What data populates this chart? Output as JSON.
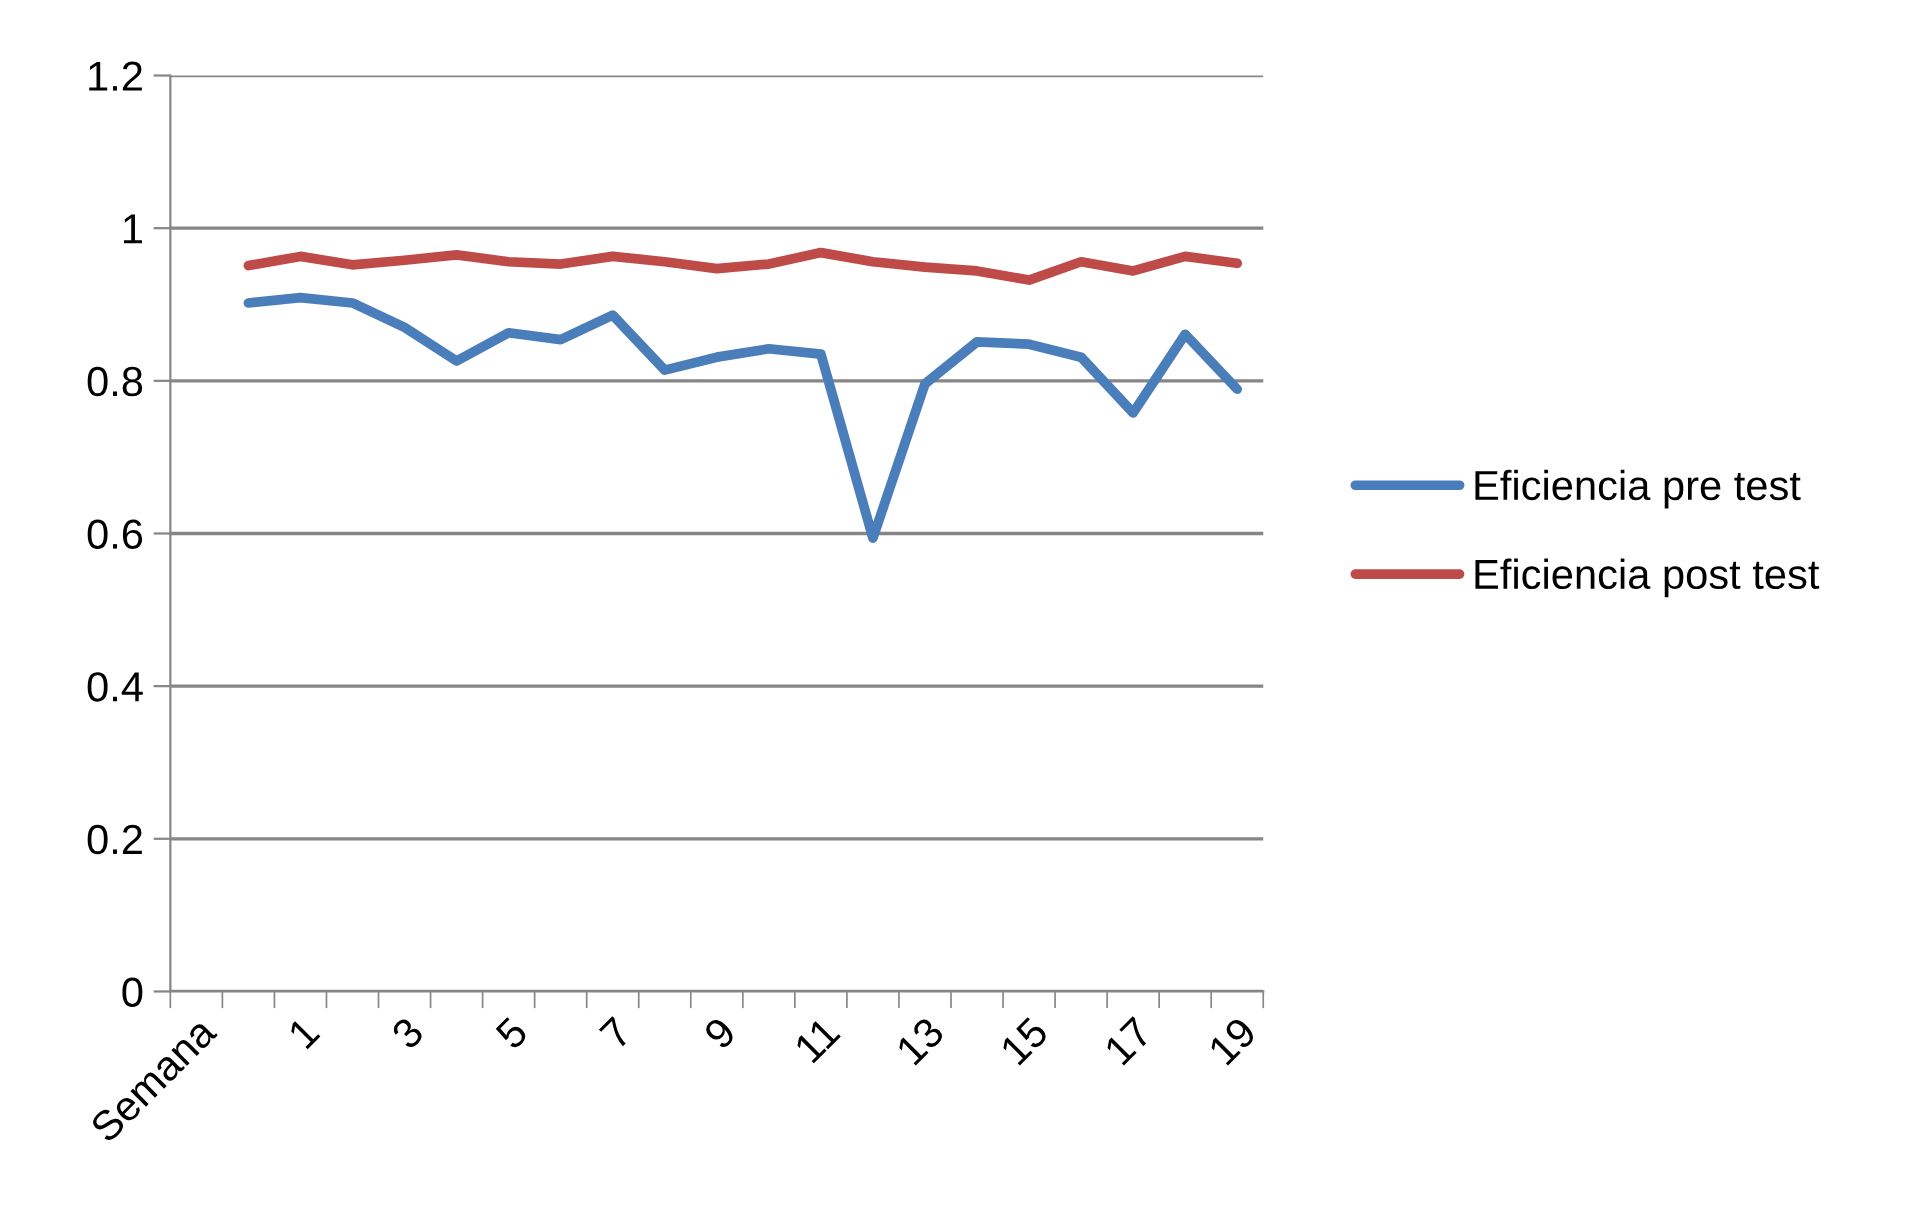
{
  "chart_data": {
    "type": "line",
    "categories": [
      "Semana",
      null,
      "1",
      null,
      "3",
      null,
      "5",
      null,
      "7",
      null,
      "9",
      null,
      "11",
      null,
      "13",
      null,
      "15",
      null,
      "17",
      null,
      "19"
    ],
    "series": [
      {
        "name": "Eficiencia pre test",
        "color": "#4a7ebb",
        "values": [
          null,
          0.902,
          0.909,
          0.902,
          0.87,
          0.826,
          0.863,
          0.854,
          0.886,
          0.814,
          0.831,
          0.842,
          0.835,
          0.594,
          0.796,
          0.851,
          0.848,
          0.831,
          0.758,
          0.861,
          0.789
        ]
      },
      {
        "name": "Eficiencia post test",
        "color": "#be4b48",
        "values": [
          null,
          0.951,
          0.963,
          0.952,
          0.958,
          0.965,
          0.956,
          0.953,
          0.963,
          0.956,
          0.947,
          0.953,
          0.968,
          0.956,
          0.949,
          0.944,
          0.932,
          0.956,
          0.944,
          0.963,
          0.954
        ]
      }
    ],
    "ylim": [
      0,
      1.2
    ],
    "yticks": [
      {
        "value": 0,
        "label": "0"
      },
      0.2,
      0.4,
      0.6,
      0.8,
      {
        "value": 1,
        "label": "1"
      },
      1.2
    ],
    "grid": "y",
    "legend": "right",
    "marker": "none",
    "line_style": "solid"
  }
}
